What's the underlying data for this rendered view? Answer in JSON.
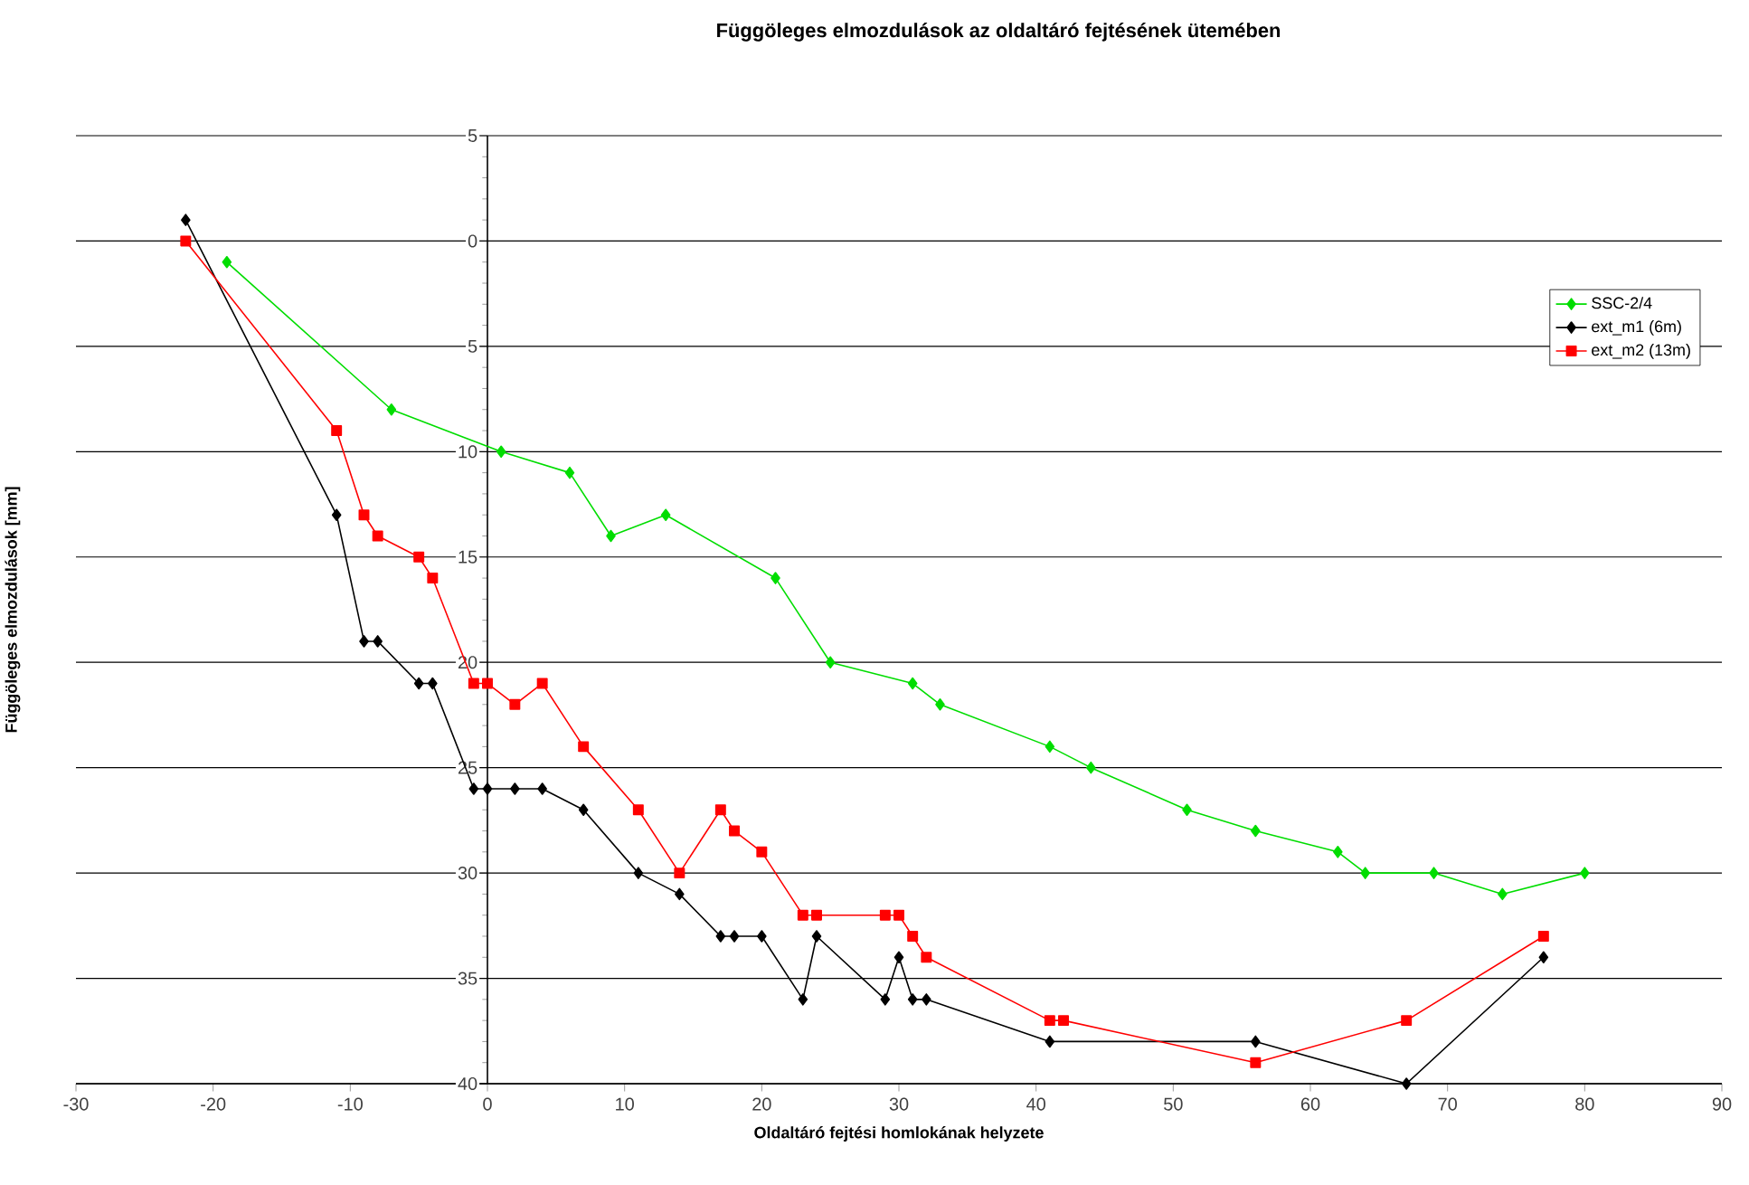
{
  "chart_data": {
    "type": "line",
    "title": "Függöleges elmozdulások az oldaltáró fejtésének ütemében",
    "xlabel": "Oldaltáró fejtési homlokának helyzete",
    "ylabel": "Függöleges elmozdulások [mm]",
    "xlim": [
      -30,
      90
    ],
    "xticks": [
      -30,
      -20,
      -10,
      0,
      10,
      20,
      30,
      40,
      50,
      60,
      70,
      80,
      90
    ],
    "ylim": [
      -40,
      5
    ],
    "yticks": [
      5,
      0,
      {
        "value": -5,
        "label": "5"
      },
      {
        "value": -10,
        "label": "10"
      },
      {
        "value": -15,
        "label": "15"
      },
      {
        "value": -20,
        "label": "20"
      },
      {
        "value": -25,
        "label": "25"
      },
      {
        "value": -30,
        "label": "30"
      },
      {
        "value": -35,
        "label": "35"
      },
      {
        "value": -40,
        "label": "40"
      }
    ],
    "grid": "y",
    "legend": "top right",
    "line_style": "solid",
    "series": [
      {
        "name": "SSC-2/4",
        "color": "#00dd00",
        "marker": "diamond",
        "x": [
          -19,
          -7,
          1,
          6,
          9,
          13,
          21,
          25,
          31,
          33,
          41,
          44,
          51,
          56,
          62,
          64,
          69,
          74,
          80
        ],
        "values": [
          -1,
          -8,
          -10,
          -11,
          -14,
          -13,
          -16,
          -20,
          -21,
          -22,
          -24,
          -25,
          -27,
          -28,
          -29,
          -30,
          -30,
          -31,
          -30
        ]
      },
      {
        "name": "ext_m1 (6m)",
        "color": "#000000",
        "marker": "diamond",
        "x": [
          -22,
          -11,
          -9,
          -8,
          -5,
          -4,
          -1,
          0,
          2,
          4,
          7,
          11,
          14,
          17,
          18,
          20,
          23,
          24,
          29,
          30,
          31,
          32,
          41,
          56,
          67,
          77
        ],
        "values": [
          1,
          -13,
          -19,
          -19,
          -21,
          -21,
          -26,
          -26,
          -26,
          -26,
          -27,
          -30,
          -31,
          -33,
          -33,
          -33,
          -36,
          -33,
          -36,
          -34,
          -36,
          -36,
          -38,
          -38,
          -40,
          -34
        ]
      },
      {
        "name": "ext_m2 (13m)",
        "color": "#ff0000",
        "marker": "square",
        "x": [
          -22,
          -11,
          -9,
          -8,
          -5,
          -4,
          -1,
          0,
          2,
          4,
          7,
          11,
          14,
          17,
          18,
          20,
          23,
          24,
          29,
          30,
          31,
          32,
          41,
          42,
          56,
          67,
          77
        ],
        "values": [
          0,
          -9,
          -13,
          -14,
          -15,
          -16,
          -21,
          -21,
          -22,
          -21,
          -24,
          -27,
          -30,
          -27,
          -28,
          -29,
          -32,
          -32,
          -32,
          -32,
          -33,
          -34,
          -37,
          -37,
          -39,
          -37,
          -33
        ]
      }
    ]
  }
}
